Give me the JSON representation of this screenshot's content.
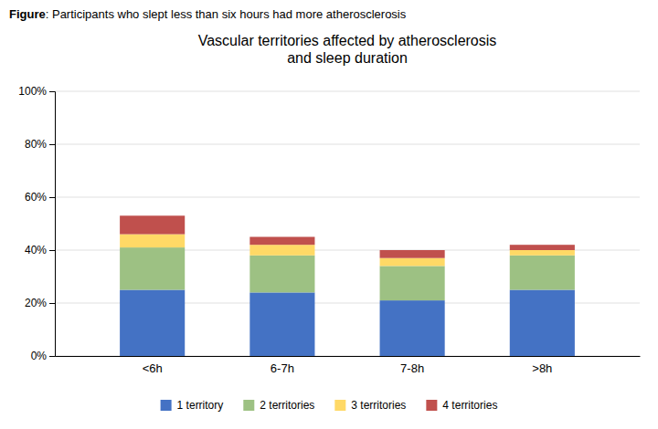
{
  "chart_data": {
    "type": "bar",
    "stacked": true,
    "title": "Vascular territories affected by atherosclerosis\nand sleep duration",
    "annotations": [
      "Figure",
      ": Participants who slept less than six hours had more atherosclerosis"
    ],
    "categories": [
      "<6h",
      "6-7h",
      "7-8h",
      ">8h"
    ],
    "series": [
      {
        "name": "1 territory",
        "color": "#4472C4",
        "values": [
          25,
          24,
          21,
          25
        ]
      },
      {
        "name": "2 territories",
        "color": "#9DC183",
        "values": [
          16,
          14,
          13,
          13
        ]
      },
      {
        "name": "3 territories",
        "color": "#FFD966",
        "values": [
          5,
          4,
          3,
          2
        ]
      },
      {
        "name": "4 territories",
        "color": "#C0504D",
        "values": [
          7,
          3,
          3,
          2
        ]
      }
    ],
    "ylim": [
      0,
      100
    ],
    "yticks": [
      {
        "value": 0,
        "label": "0%"
      },
      {
        "value": 20,
        "label": "20%"
      },
      {
        "value": 40,
        "label": "40%"
      },
      {
        "value": 60,
        "label": "60%"
      },
      {
        "value": 80,
        "label": "80%"
      },
      {
        "value": 100,
        "label": "100%"
      }
    ],
    "grid": true,
    "legend": "bottom"
  }
}
